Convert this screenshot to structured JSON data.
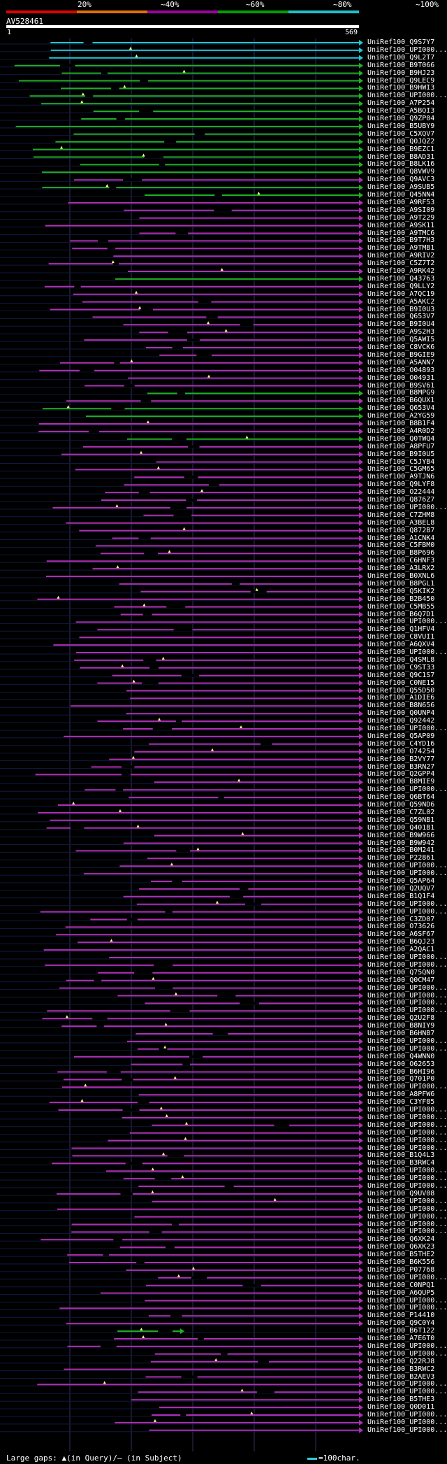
{
  "scale": {
    "labels": [
      "20%",
      "~40%",
      "~60%",
      "~80%",
      "~100%"
    ],
    "colors": [
      "#e00000",
      "#e07000",
      "#a000a0",
      "#00a000",
      "#20c0c8"
    ]
  },
  "query": {
    "name": "AV528461",
    "start": "1",
    "end": "569"
  },
  "hits": [
    {
      "label": "UniRef100_Q9S7Y7",
      "color": "cyan"
    },
    {
      "label": "UniRef100_UPI000...",
      "color": "cyan"
    },
    {
      "label": "UniRef100_Q9L2T7",
      "color": "cyan"
    },
    {
      "label": "UniRef100_B9T066",
      "color": "green"
    },
    {
      "label": "UniRef100_B9HJ23",
      "color": "green"
    },
    {
      "label": "UniRef100_Q9LEC9",
      "color": "green"
    },
    {
      "label": "UniRef100_B9HWI3",
      "color": "green"
    },
    {
      "label": "UniRef100_UPI000...",
      "color": "green"
    },
    {
      "label": "UniRef100_A7P254",
      "color": "green"
    },
    {
      "label": "UniRef100_A5BQI3",
      "color": "green"
    },
    {
      "label": "UniRef100_Q9ZP04",
      "color": "green"
    },
    {
      "label": "UniRef100_B5UBY9",
      "color": "green"
    },
    {
      "label": "UniRef100_C5XQV7",
      "color": "green"
    },
    {
      "label": "UniRef100_Q0JQZ2",
      "color": "green"
    },
    {
      "label": "UniRef100_B9EZC1",
      "color": "green"
    },
    {
      "label": "UniRef100_B8AD31",
      "color": "green"
    },
    {
      "label": "UniRef100_B8LK16",
      "color": "green"
    },
    {
      "label": "UniRef100_Q8VWV9",
      "color": "green"
    },
    {
      "label": "UniRef100_Q9AVC3",
      "color": "magenta"
    },
    {
      "label": "UniRef100_A9SUB5",
      "color": "green"
    },
    {
      "label": "UniRef100_Q45NN4",
      "color": "green"
    },
    {
      "label": "UniRef100_A9RF53",
      "color": "magenta"
    },
    {
      "label": "UniRef100_A9SI09",
      "color": "magenta"
    },
    {
      "label": "UniRef100_A9T229",
      "color": "magenta"
    },
    {
      "label": "UniRef100_A9SK11",
      "color": "magenta"
    },
    {
      "label": "UniRef100_A9TMC6",
      "color": "magenta"
    },
    {
      "label": "UniRef100_B9T7H3",
      "color": "magenta"
    },
    {
      "label": "UniRef100_A9TMB1",
      "color": "magenta"
    },
    {
      "label": "UniRef100_A9RIV2",
      "color": "magenta"
    },
    {
      "label": "UniRef100_C5Z7T2",
      "color": "magenta"
    },
    {
      "label": "UniRef100_A9RK42",
      "color": "magenta"
    },
    {
      "label": "UniRef100_Q43763",
      "color": "green"
    },
    {
      "label": "UniRef100_Q9LLY2",
      "color": "magenta"
    },
    {
      "label": "UniRef100_A7QC19",
      "color": "magenta"
    },
    {
      "label": "UniRef100_A5AKC2",
      "color": "magenta"
    },
    {
      "label": "UniRef100_B9I0U3",
      "color": "magenta"
    },
    {
      "label": "UniRef100_Q653V7",
      "color": "magenta"
    },
    {
      "label": "UniRef100_B9I0U4",
      "color": "magenta"
    },
    {
      "label": "UniRef100_A9S2H3",
      "color": "magenta"
    },
    {
      "label": "UniRef100_Q5AWI5",
      "color": "magenta"
    },
    {
      "label": "UniRef100_C8VCK6",
      "color": "magenta"
    },
    {
      "label": "UniRef100_B9GIE9",
      "color": "magenta"
    },
    {
      "label": "UniRef100_A5ANN7",
      "color": "magenta"
    },
    {
      "label": "UniRef100_O04893",
      "color": "magenta"
    },
    {
      "label": "UniRef100_O04931",
      "color": "magenta"
    },
    {
      "label": "UniRef100_B9SV61",
      "color": "magenta"
    },
    {
      "label": "UniRef100_B8MPG9",
      "color": "green"
    },
    {
      "label": "UniRef100_B6QUX1",
      "color": "magenta"
    },
    {
      "label": "UniRef100_Q653V4",
      "color": "green"
    },
    {
      "label": "UniRef100_A2YG59",
      "color": "green"
    },
    {
      "label": "UniRef100_B8B1F4",
      "color": "magenta"
    },
    {
      "label": "UniRef100_A4R0D2",
      "color": "magenta"
    },
    {
      "label": "UniRef100_Q0TWQ4",
      "color": "green"
    },
    {
      "label": "UniRef100_A8PFU7",
      "color": "magenta"
    },
    {
      "label": "UniRef100_B9I0U5",
      "color": "magenta"
    },
    {
      "label": "UniRef100_C5JYB4",
      "color": "magenta"
    },
    {
      "label": "UniRef100_C5GM65",
      "color": "magenta"
    },
    {
      "label": "UniRef100_A9TJN6",
      "color": "magenta"
    },
    {
      "label": "UniRef100_Q9LYF8",
      "color": "magenta"
    },
    {
      "label": "UniRef100_O22444",
      "color": "magenta"
    },
    {
      "label": "UniRef100_Q876Z7",
      "color": "magenta"
    },
    {
      "label": "UniRef100_UPI000...",
      "color": "magenta"
    },
    {
      "label": "UniRef100_C7ZHM8",
      "color": "magenta"
    },
    {
      "label": "UniRef100_A3BEL8",
      "color": "magenta"
    },
    {
      "label": "UniRef100_Q872B7",
      "color": "magenta"
    },
    {
      "label": "UniRef100_A1CNK4",
      "color": "magenta"
    },
    {
      "label": "UniRef100_C5FBM0",
      "color": "magenta"
    },
    {
      "label": "UniRef100_B8P696",
      "color": "magenta"
    },
    {
      "label": "UniRef100_C6HNF3",
      "color": "magenta"
    },
    {
      "label": "UniRef100_A3LRX2",
      "color": "magenta"
    },
    {
      "label": "UniRef100_B0XNL6",
      "color": "magenta"
    },
    {
      "label": "UniRef100_B8PGL1",
      "color": "magenta"
    },
    {
      "label": "UniRef100_Q5KIK2",
      "color": "magenta"
    },
    {
      "label": "UniRef100_B2B450",
      "color": "magenta"
    },
    {
      "label": "UniRef100_C5MB55",
      "color": "magenta"
    },
    {
      "label": "UniRef100_B6Q7D1",
      "color": "magenta"
    },
    {
      "label": "UniRef100_UPI000...",
      "color": "magenta"
    },
    {
      "label": "UniRef100_Q1HFV4",
      "color": "magenta"
    },
    {
      "label": "UniRef100_C8VUI1",
      "color": "magenta"
    },
    {
      "label": "UniRef100_A6QXV4",
      "color": "magenta"
    },
    {
      "label": "UniRef100_UPI000...",
      "color": "magenta"
    },
    {
      "label": "UniRef100_Q4SML8",
      "color": "magenta"
    },
    {
      "label": "UniRef100_C9ST33",
      "color": "magenta"
    },
    {
      "label": "UniRef100_Q9C1S7",
      "color": "magenta"
    },
    {
      "label": "UniRef100_C0NE15",
      "color": "magenta"
    },
    {
      "label": "UniRef100_Q55D50",
      "color": "magenta"
    },
    {
      "label": "UniRef100_A1DIE6",
      "color": "magenta"
    },
    {
      "label": "UniRef100_B8N656",
      "color": "magenta"
    },
    {
      "label": "UniRef100_Q0UNP4",
      "color": "magenta"
    },
    {
      "label": "UniRef100_Q92442",
      "color": "magenta"
    },
    {
      "label": "UniRef100_UPI000...",
      "color": "magenta"
    },
    {
      "label": "UniRef100_Q5AP09",
      "color": "magenta"
    },
    {
      "label": "UniRef100_C4YD16",
      "color": "magenta"
    },
    {
      "label": "UniRef100_O74254",
      "color": "magenta"
    },
    {
      "label": "UniRef100_B2VY77",
      "color": "magenta"
    },
    {
      "label": "UniRef100_B3RN27",
      "color": "magenta"
    },
    {
      "label": "UniRef100_Q2GPP4",
      "color": "magenta"
    },
    {
      "label": "UniRef100_B8MIE9",
      "color": "magenta"
    },
    {
      "label": "UniRef100_UPI000...",
      "color": "magenta"
    },
    {
      "label": "UniRef100_Q6BT64",
      "color": "magenta"
    },
    {
      "label": "UniRef100_Q59ND6",
      "color": "magenta"
    },
    {
      "label": "UniRef100_C7ZL02",
      "color": "magenta"
    },
    {
      "label": "UniRef100_Q59NB1",
      "color": "magenta"
    },
    {
      "label": "UniRef100_Q401B1",
      "color": "magenta"
    },
    {
      "label": "UniRef100_B9W966",
      "color": "magenta"
    },
    {
      "label": "UniRef100_B9W942",
      "color": "magenta"
    },
    {
      "label": "UniRef100_B0M241",
      "color": "magenta"
    },
    {
      "label": "UniRef100_P22861",
      "color": "magenta"
    },
    {
      "label": "UniRef100_UPI000...",
      "color": "magenta"
    },
    {
      "label": "UniRef100_UPI000...",
      "color": "magenta"
    },
    {
      "label": "UniRef100_Q5AP64",
      "color": "magenta"
    },
    {
      "label": "UniRef100_Q2UQV7",
      "color": "magenta"
    },
    {
      "label": "UniRef100_B1Q1F4",
      "color": "magenta"
    },
    {
      "label": "UniRef100_UPI000...",
      "color": "magenta"
    },
    {
      "label": "UniRef100_UPI000...",
      "color": "magenta"
    },
    {
      "label": "UniRef100_C3ZD07",
      "color": "magenta"
    },
    {
      "label": "UniRef100_O73626",
      "color": "magenta"
    },
    {
      "label": "UniRef100_A6SF67",
      "color": "magenta"
    },
    {
      "label": "UniRef100_B6QJ23",
      "color": "magenta"
    },
    {
      "label": "UniRef100_A2QAC1",
      "color": "magenta"
    },
    {
      "label": "UniRef100_UPI000...",
      "color": "magenta"
    },
    {
      "label": "UniRef100_UPI000...",
      "color": "magenta"
    },
    {
      "label": "UniRef100_Q75QN0",
      "color": "magenta"
    },
    {
      "label": "UniRef100_Q0CM47",
      "color": "magenta"
    },
    {
      "label": "UniRef100_UPI000...",
      "color": "magenta"
    },
    {
      "label": "UniRef100_UPI000...",
      "color": "magenta"
    },
    {
      "label": "UniRef100_UPI000...",
      "color": "magenta"
    },
    {
      "label": "UniRef100_UPI000...",
      "color": "magenta"
    },
    {
      "label": "UniRef100_Q2U2F8",
      "color": "magenta"
    },
    {
      "label": "UniRef100_B8NIY9",
      "color": "magenta"
    },
    {
      "label": "UniRef100_B6HNB7",
      "color": "magenta"
    },
    {
      "label": "UniRef100_UPI000...",
      "color": "magenta"
    },
    {
      "label": "UniRef100_UPI000...",
      "color": "magenta"
    },
    {
      "label": "UniRef100_Q4WNN0",
      "color": "magenta"
    },
    {
      "label": "UniRef100_O62653",
      "color": "magenta"
    },
    {
      "label": "UniRef100_B6HI96",
      "color": "magenta"
    },
    {
      "label": "UniRef100_Q701P0",
      "color": "magenta"
    },
    {
      "label": "UniRef100_UPI000...",
      "color": "magenta"
    },
    {
      "label": "UniRef100_A8PFW6",
      "color": "magenta"
    },
    {
      "label": "UniRef100_C3YF85",
      "color": "magenta"
    },
    {
      "label": "UniRef100_UPI000...",
      "color": "magenta"
    },
    {
      "label": "UniRef100_UPI000...",
      "color": "magenta"
    },
    {
      "label": "UniRef100_UPI000...",
      "color": "magenta"
    },
    {
      "label": "UniRef100_UPI000...",
      "color": "magenta"
    },
    {
      "label": "UniRef100_UPI000...",
      "color": "magenta"
    },
    {
      "label": "UniRef100_UPI000...",
      "color": "magenta"
    },
    {
      "label": "UniRef100_B1Q4L3",
      "color": "magenta"
    },
    {
      "label": "UniRef100_B3RWC4",
      "color": "magenta"
    },
    {
      "label": "UniRef100_UPI000...",
      "color": "magenta"
    },
    {
      "label": "UniRef100_UPI000...",
      "color": "magenta"
    },
    {
      "label": "UniRef100_UPI000...",
      "color": "magenta"
    },
    {
      "label": "UniRef100_Q9UV08",
      "color": "magenta"
    },
    {
      "label": "UniRef100_UPI000...",
      "color": "magenta"
    },
    {
      "label": "UniRef100_UPI000...",
      "color": "magenta"
    },
    {
      "label": "UniRef100_UPI000...",
      "color": "magenta"
    },
    {
      "label": "UniRef100_UPI000...",
      "color": "magenta"
    },
    {
      "label": "UniRef100_UPI000...",
      "color": "magenta"
    },
    {
      "label": "UniRef100_Q6XK24",
      "color": "magenta"
    },
    {
      "label": "UniRef100_Q6XK23",
      "color": "magenta"
    },
    {
      "label": "UniRef100_B5THE2",
      "color": "magenta"
    },
    {
      "label": "UniRef100_B6K556",
      "color": "magenta"
    },
    {
      "label": "UniRef100_P07768",
      "color": "magenta"
    },
    {
      "label": "UniRef100_UPI000...",
      "color": "magenta"
    },
    {
      "label": "UniRef100_C0NPQ1",
      "color": "magenta"
    },
    {
      "label": "UniRef100_A6QUP5",
      "color": "magenta"
    },
    {
      "label": "UniRef100_UPI000...",
      "color": "magenta"
    },
    {
      "label": "UniRef100_UPI000...",
      "color": "magenta"
    },
    {
      "label": "UniRef100_P14410",
      "color": "magenta"
    },
    {
      "label": "UniRef100_Q9C0Y4",
      "color": "magenta"
    },
    {
      "label": "UniRef100_B6T122",
      "color": "green"
    },
    {
      "label": "UniRef100_A7E6T0",
      "color": "magenta"
    },
    {
      "label": "UniRef100_UPI000...",
      "color": "magenta"
    },
    {
      "label": "UniRef100_UPI000...",
      "color": "magenta"
    },
    {
      "label": "UniRef100_Q22RJ8",
      "color": "magenta"
    },
    {
      "label": "UniRef100_B3RWC2",
      "color": "magenta"
    },
    {
      "label": "UniRef100_B2AEV3",
      "color": "magenta"
    },
    {
      "label": "UniRef100_UPI000...",
      "color": "magenta"
    },
    {
      "label": "UniRef100_UPI000...",
      "color": "magenta"
    },
    {
      "label": "UniRef100_B5THE3",
      "color": "magenta"
    },
    {
      "label": "UniRef100_Q0D011",
      "color": "magenta"
    },
    {
      "label": "UniRef100_UPI000...",
      "color": "magenta"
    },
    {
      "label": "UniRef100_UPI000...",
      "color": "magenta"
    },
    {
      "label": "UniRef100_UPI000...",
      "color": "magenta"
    }
  ],
  "legend": {
    "text": "Large gaps: ▲(in Query)/— (in Subject)",
    "scale_text": "=100char."
  },
  "colors": {
    "cyan": "#20c8d0",
    "green": "#20b020",
    "magenta": "#b030b0",
    "grid": "#303060"
  }
}
